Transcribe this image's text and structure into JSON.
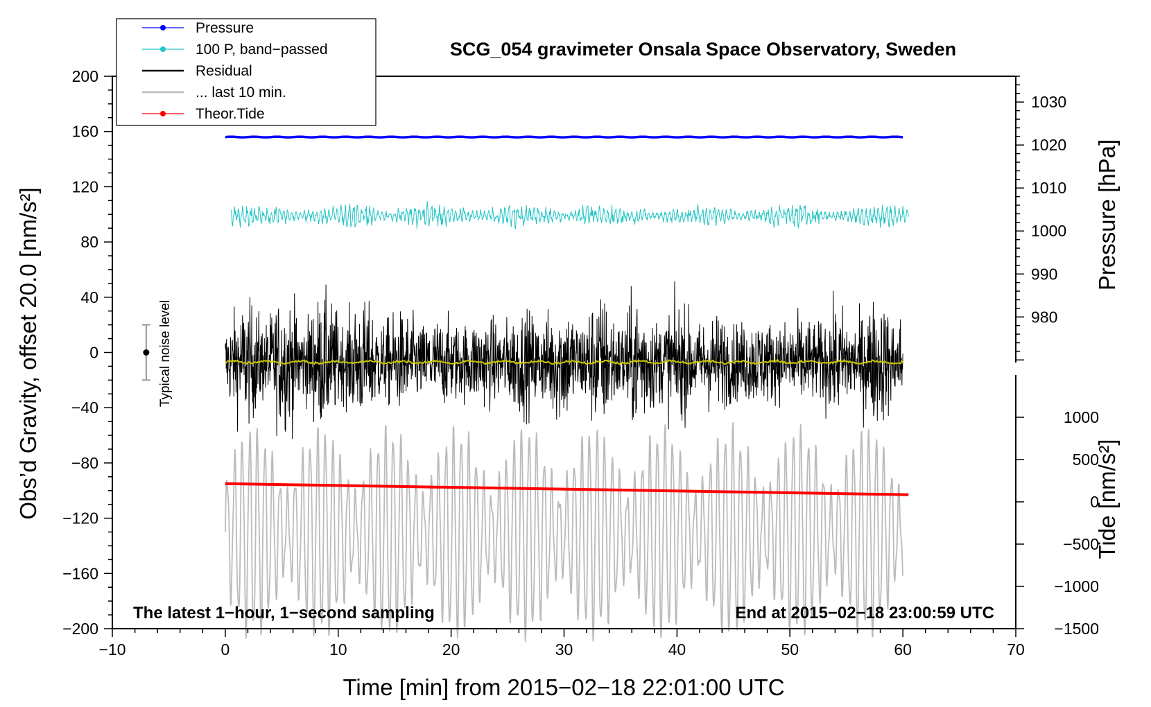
{
  "chart_data": {
    "type": "line",
    "title": "SCG_054 gravimeter Onsala Space Observatory, Sweden",
    "xlabel": "Time [min] from 2015−02−18 22:01:00 UTC",
    "ylabel_main": "Obs’d Gravity, offset 20.0",
    "ylabel_main_unit": "[nm/s²]",
    "ylabel_right_top": "Pressure [hPa]",
    "ylabel_right_bottom_word": "Tide",
    "ylabel_right_bottom_unit": "[nm/s²]",
    "xlim": [
      -10,
      70
    ],
    "ylim": [
      -200,
      200
    ],
    "pressure_lim": [
      969.4,
      1036.0
    ],
    "tide_lim": [
      -1500,
      1500
    ],
    "x_ticks": [
      "−10",
      "0",
      "10",
      "20",
      "30",
      "40",
      "50",
      "60",
      "70"
    ],
    "x_tick_values": [
      -10,
      0,
      10,
      20,
      30,
      40,
      50,
      60,
      70
    ],
    "y_ticks": [
      "200",
      "160",
      "120",
      "80",
      "40",
      "0",
      "−40",
      "−80",
      "−120",
      "−160",
      "−200"
    ],
    "y_tick_values": [
      200,
      160,
      120,
      80,
      40,
      0,
      -40,
      -80,
      -120,
      -160,
      -200
    ],
    "pressure_ticks": [
      "1030",
      "1020",
      "1010",
      "1000",
      "990",
      "980"
    ],
    "pressure_tick_values": [
      1030,
      1020,
      1010,
      1000,
      990,
      980
    ],
    "tide_ticks": [
      "1000",
      "500",
      "0",
      "−500",
      "−1000",
      "−1500"
    ],
    "tide_tick_values": [
      1000,
      500,
      0,
      -500,
      -1000,
      -1500
    ],
    "legend": [
      {
        "label": "Pressure",
        "color": "#0000ff",
        "marker": true
      },
      {
        "label": "100 P, band−passed",
        "color": "#22c4c4",
        "marker": true
      },
      {
        "label": "Residual",
        "color": "#000000",
        "marker": false
      },
      {
        "label": "... last 10 min.",
        "color": "#bbbbbb",
        "marker": false
      },
      {
        "label": "Theor.Tide",
        "color": "#ff0000",
        "marker": true
      }
    ],
    "noise_label": "Typical noise level",
    "noise_bar": {
      "x": -7,
      "center": 0,
      "low": -20,
      "high": 20
    },
    "annotation_left": "The latest 1−hour, 1−second sampling",
    "annotation_right": "End at 2015−02−18 23:00:59 UTC",
    "series": [
      {
        "name": "Pressure",
        "color": "#0000ff",
        "axis": "main",
        "x_range": [
          0,
          60
        ],
        "center": 156,
        "amplitude": 0.6
      },
      {
        "name": "100 P, band-passed",
        "color": "#22c4c4",
        "axis": "main",
        "x_range": [
          0.5,
          60.5
        ],
        "center": 99,
        "amplitude": 15
      },
      {
        "name": "Residual",
        "color": "#000000",
        "axis": "main",
        "x_range": [
          0,
          60
        ],
        "center": -7,
        "amplitude": 66
      },
      {
        "name": "Residual (smoothed)",
        "color": "#c8c800",
        "axis": "main",
        "x_range": [
          0,
          60
        ],
        "center": -7,
        "amplitude": 2
      },
      {
        "name": "... last 10 min.",
        "color": "#bbbbbb",
        "axis": "main",
        "x_range": [
          0,
          60
        ],
        "center": -130,
        "amplitude": 72
      },
      {
        "name": "Theor.Tide",
        "color": "#ff0000",
        "axis": "main",
        "x_values": [
          0,
          60.5
        ],
        "y_values": [
          -95,
          -103
        ]
      }
    ]
  }
}
